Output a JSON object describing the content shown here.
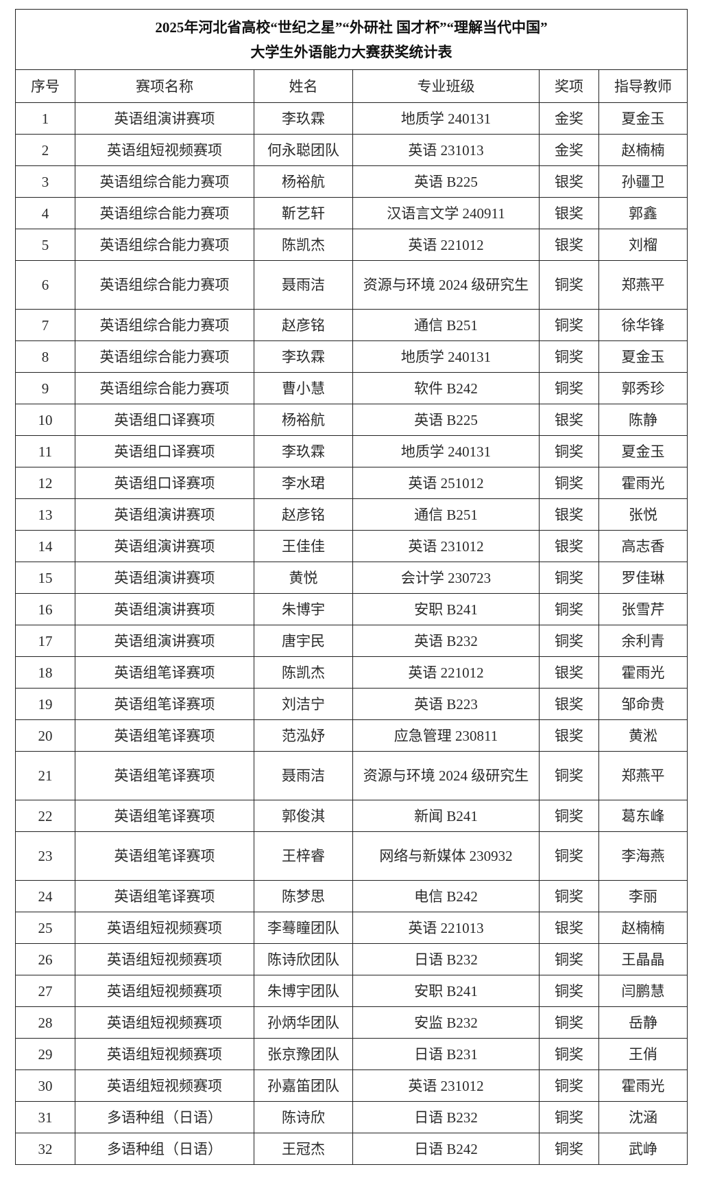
{
  "title": {
    "line1": "2025年河北省高校“世纪之星”“外研社 国才杯”“理解当代中国”",
    "line2": "大学生外语能力大赛获奖统计表"
  },
  "columns": [
    "序号",
    "赛项名称",
    "姓名",
    "专业班级",
    "奖项",
    "指导教师"
  ],
  "rows": [
    [
      "1",
      "英语组演讲赛项",
      "李玖霖",
      "地质学 240131",
      "金奖",
      "夏金玉"
    ],
    [
      "2",
      "英语组短视频赛项",
      "何永聪团队",
      "英语 231013",
      "金奖",
      "赵楠楠"
    ],
    [
      "3",
      "英语组综合能力赛项",
      "杨裕航",
      "英语 B225",
      "银奖",
      "孙疆卫"
    ],
    [
      "4",
      "英语组综合能力赛项",
      "靳艺轩",
      "汉语言文学 240911",
      "银奖",
      "郭鑫"
    ],
    [
      "5",
      "英语组综合能力赛项",
      "陈凯杰",
      "英语 221012",
      "银奖",
      "刘榴"
    ],
    [
      "6",
      "英语组综合能力赛项",
      "聂雨洁",
      "资源与环境 2024 级研究生",
      "铜奖",
      "郑燕平"
    ],
    [
      "7",
      "英语组综合能力赛项",
      "赵彦铭",
      "通信 B251",
      "铜奖",
      "徐华锋"
    ],
    [
      "8",
      "英语组综合能力赛项",
      "李玖霖",
      "地质学 240131",
      "铜奖",
      "夏金玉"
    ],
    [
      "9",
      "英语组综合能力赛项",
      "曹小慧",
      "软件 B242",
      "铜奖",
      "郭秀珍"
    ],
    [
      "10",
      "英语组口译赛项",
      "杨裕航",
      "英语 B225",
      "银奖",
      "陈静"
    ],
    [
      "11",
      "英语组口译赛项",
      "李玖霖",
      "地质学 240131",
      "铜奖",
      "夏金玉"
    ],
    [
      "12",
      "英语组口译赛项",
      "李水珺",
      "英语 251012",
      "铜奖",
      "霍雨光"
    ],
    [
      "13",
      "英语组演讲赛项",
      "赵彦铭",
      "通信 B251",
      "银奖",
      "张悦"
    ],
    [
      "14",
      "英语组演讲赛项",
      "王佳佳",
      "英语 231012",
      "银奖",
      "高志香"
    ],
    [
      "15",
      "英语组演讲赛项",
      "黄悦",
      "会计学  230723",
      "铜奖",
      "罗佳琳"
    ],
    [
      "16",
      "英语组演讲赛项",
      "朱博宇",
      "安职 B241",
      "铜奖",
      "张雪芹"
    ],
    [
      "17",
      "英语组演讲赛项",
      "唐宇民",
      "英语 B232",
      "铜奖",
      "余利青"
    ],
    [
      "18",
      "英语组笔译赛项",
      "陈凯杰",
      "英语 221012",
      "银奖",
      "霍雨光"
    ],
    [
      "19",
      "英语组笔译赛项",
      "刘洁宁",
      "英语 B223",
      "银奖",
      "邹命贵"
    ],
    [
      "20",
      "英语组笔译赛项",
      "范泓妤",
      "应急管理 230811",
      "银奖",
      "黄淞"
    ],
    [
      "21",
      "英语组笔译赛项",
      "聂雨洁",
      "资源与环境 2024 级研究生",
      "铜奖",
      "郑燕平"
    ],
    [
      "22",
      "英语组笔译赛项",
      "郭俊淇",
      "新闻 B241",
      "铜奖",
      "葛东峰"
    ],
    [
      "23",
      "英语组笔译赛项",
      "王梓睿",
      "网络与新媒体 230932",
      "铜奖",
      "李海燕"
    ],
    [
      "24",
      "英语组笔译赛项",
      "陈梦思",
      "电信 B242",
      "铜奖",
      "李丽"
    ],
    [
      "25",
      "英语组短视频赛项",
      "李蓦瞳团队",
      "英语 221013",
      "银奖",
      "赵楠楠"
    ],
    [
      "26",
      "英语组短视频赛项",
      "陈诗欣团队",
      "日语 B232",
      "铜奖",
      "王晶晶"
    ],
    [
      "27",
      "英语组短视频赛项",
      "朱博宇团队",
      "安职 B241",
      "铜奖",
      "闫鹏慧"
    ],
    [
      "28",
      "英语组短视频赛项",
      "孙炳华团队",
      "安监 B232",
      "铜奖",
      "岳静"
    ],
    [
      "29",
      "英语组短视频赛项",
      "张京豫团队",
      "日语 B231",
      "铜奖",
      "王俏"
    ],
    [
      "30",
      "英语组短视频赛项",
      "孙嘉笛团队",
      "英语 231012",
      "铜奖",
      "霍雨光"
    ],
    [
      "31",
      "多语种组（日语）",
      "陈诗欣",
      "日语 B232",
      "铜奖",
      "沈涵"
    ],
    [
      "32",
      "多语种组（日语）",
      "王冠杰",
      "日语 B242",
      "铜奖",
      "武峥"
    ]
  ]
}
